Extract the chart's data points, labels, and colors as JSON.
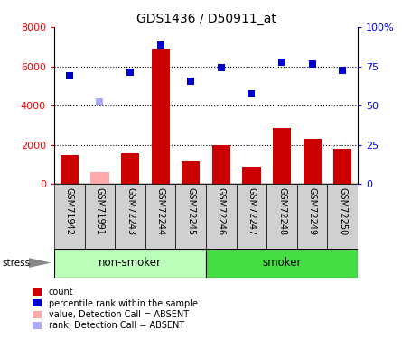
{
  "title": "GDS1436 / D50911_at",
  "samples": [
    "GSM71942",
    "GSM71991",
    "GSM72243",
    "GSM72244",
    "GSM72245",
    "GSM72246",
    "GSM72247",
    "GSM72248",
    "GSM72249",
    "GSM72250"
  ],
  "bar_values": [
    1500,
    600,
    1600,
    6900,
    1150,
    2000,
    900,
    2850,
    2300,
    1800
  ],
  "bar_absent": [
    false,
    true,
    false,
    false,
    false,
    false,
    false,
    false,
    false,
    false
  ],
  "rank_values": [
    5500,
    4200,
    5700,
    7100,
    5250,
    5950,
    4600,
    6200,
    6100,
    5800
  ],
  "rank_absent": [
    false,
    true,
    false,
    false,
    false,
    false,
    false,
    false,
    false,
    false
  ],
  "bar_color_present": "#cc0000",
  "bar_color_absent": "#ffaaaa",
  "rank_color_present": "#0000cc",
  "rank_color_absent": "#aaaaff",
  "groups": [
    {
      "label": "non-smoker",
      "start": 0,
      "end": 5,
      "color": "#bbffbb"
    },
    {
      "label": "smoker",
      "start": 5,
      "end": 10,
      "color": "#44dd44"
    }
  ],
  "ylim_left": [
    0,
    8000
  ],
  "yticks_left": [
    0,
    2000,
    4000,
    6000,
    8000
  ],
  "ytick_labels_left": [
    "0",
    "2000",
    "4000",
    "6000",
    "8000"
  ],
  "yticks_right": [
    0,
    25,
    50,
    75,
    100
  ],
  "ytick_labels_right": [
    "0",
    "25",
    "50",
    "75",
    "100%"
  ],
  "grid_values": [
    2000,
    4000,
    6000
  ],
  "stress_label": "stress",
  "xtick_bg_color": "#d0d0d0"
}
